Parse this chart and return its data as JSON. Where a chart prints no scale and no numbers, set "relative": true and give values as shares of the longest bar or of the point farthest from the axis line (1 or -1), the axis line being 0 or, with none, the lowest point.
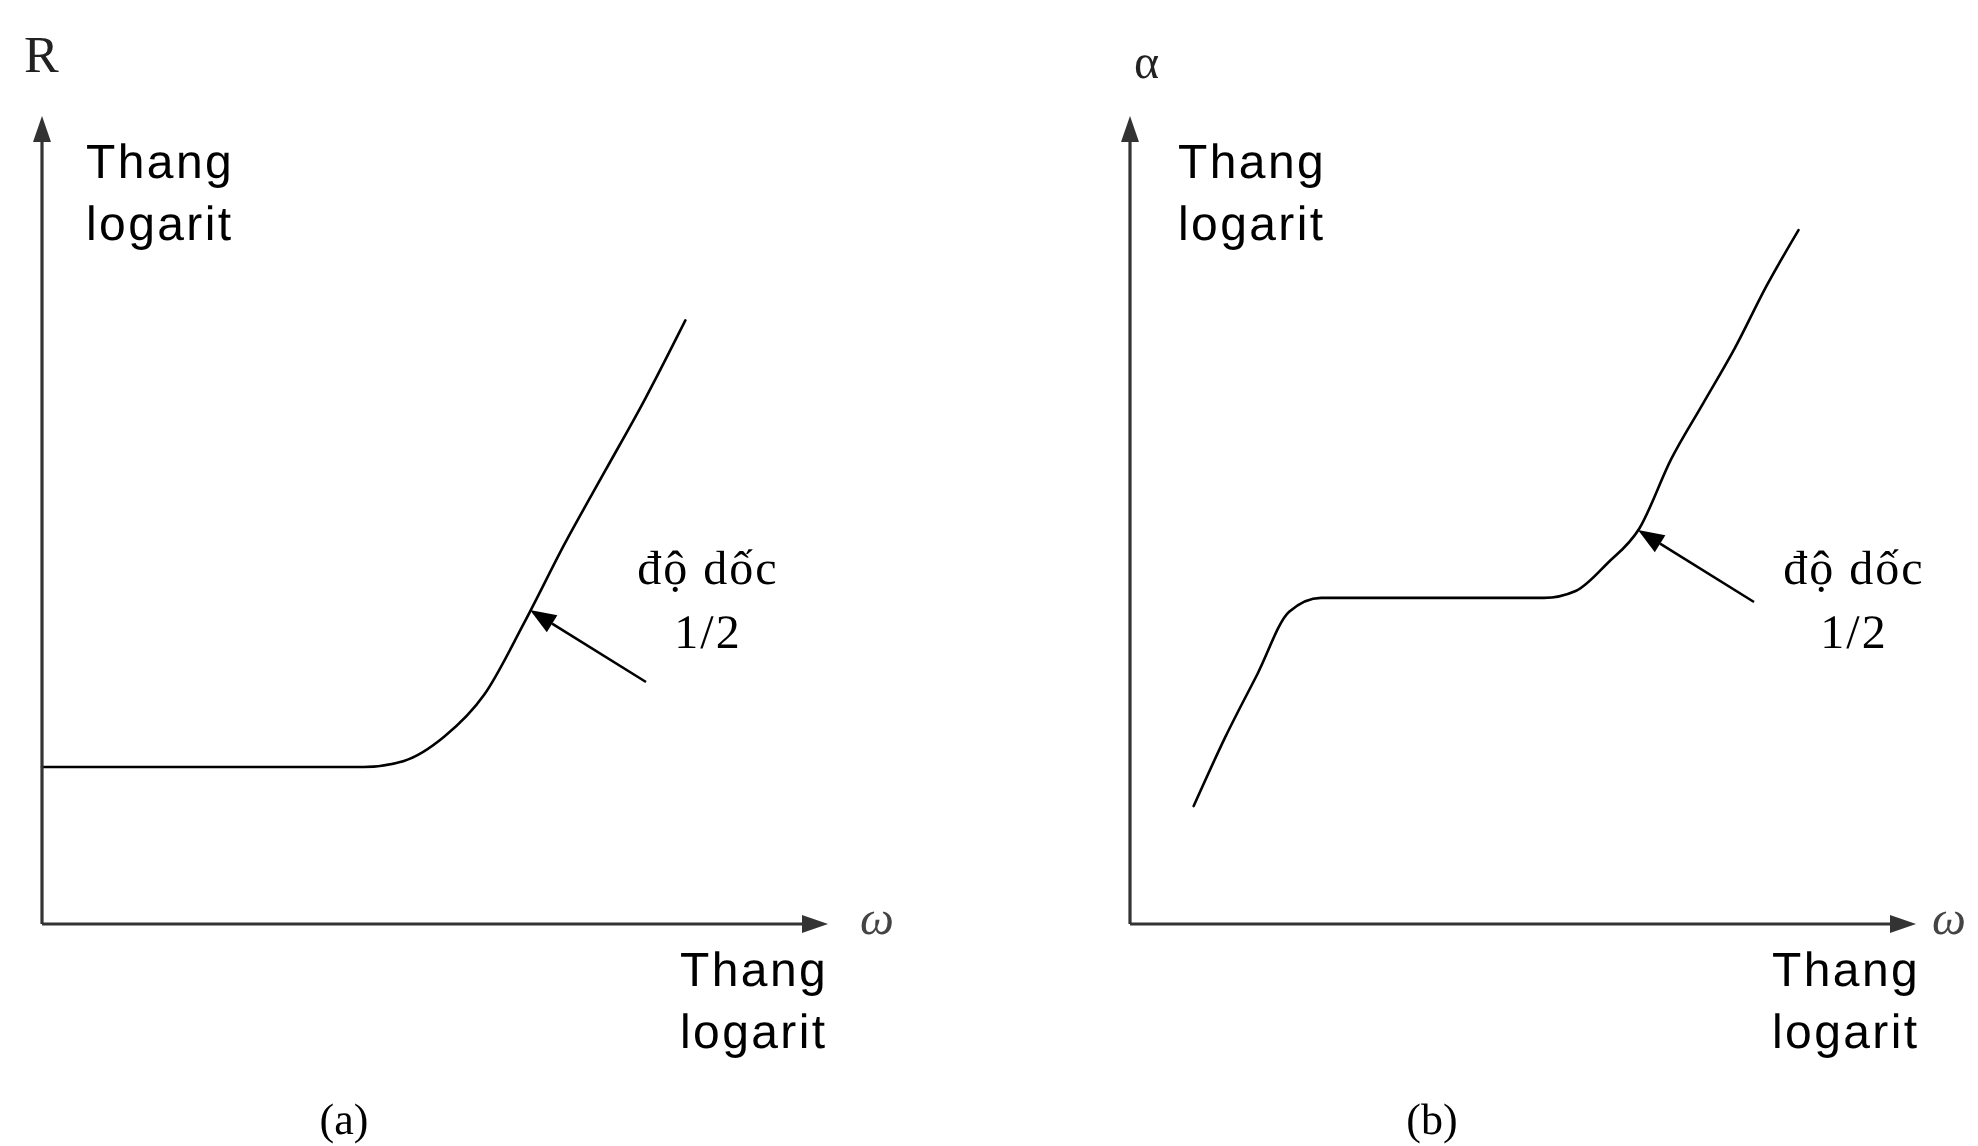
{
  "chart_data": [
    {
      "type": "line",
      "ylabel": "R",
      "xlabel": "ω",
      "annotations": [
        "Thang logarit",
        "Thang logarit",
        "độ dốc 1/2",
        "(a)"
      ],
      "categories": [
        null,
        null,
        null,
        null,
        null,
        null,
        null,
        null,
        null,
        null,
        null,
        null,
        null,
        null,
        null,
        null,
        null,
        null,
        null,
        null
      ],
      "values": [
        0.26,
        0.26,
        0.26,
        0.26,
        0.26,
        0.26,
        0.26,
        0.26,
        0.26,
        0.27,
        0.31,
        0.38,
        0.5,
        0.63,
        0.75,
        0.87,
        1,
        null,
        null,
        null
      ],
      "color": "#000000",
      "relative": true,
      "marker": "none",
      "line_style": "solid"
    },
    {
      "type": "line",
      "ylabel": "α",
      "xlabel": "ω",
      "annotations": [
        "Thang logarit",
        "Thang logarit",
        "độ dốc 1/2",
        "(b)"
      ],
      "categories": [
        null,
        null,
        null,
        null,
        null,
        null,
        null,
        null,
        null,
        null,
        null,
        null,
        null,
        null,
        null,
        null,
        null,
        null,
        null,
        null,
        null,
        null,
        null,
        null,
        null
      ],
      "values": [
        null,
        null,
        0.17,
        0.27,
        0.36,
        0.45,
        0.47,
        0.47,
        0.47,
        0.47,
        0.47,
        0.47,
        0.47,
        0.47,
        0.48,
        0.52,
        0.57,
        0.67,
        0.75,
        0.83,
        0.92,
        1,
        null,
        null,
        null
      ],
      "color": "#000000",
      "relative": true,
      "marker": "none",
      "line_style": "solid"
    }
  ]
}
